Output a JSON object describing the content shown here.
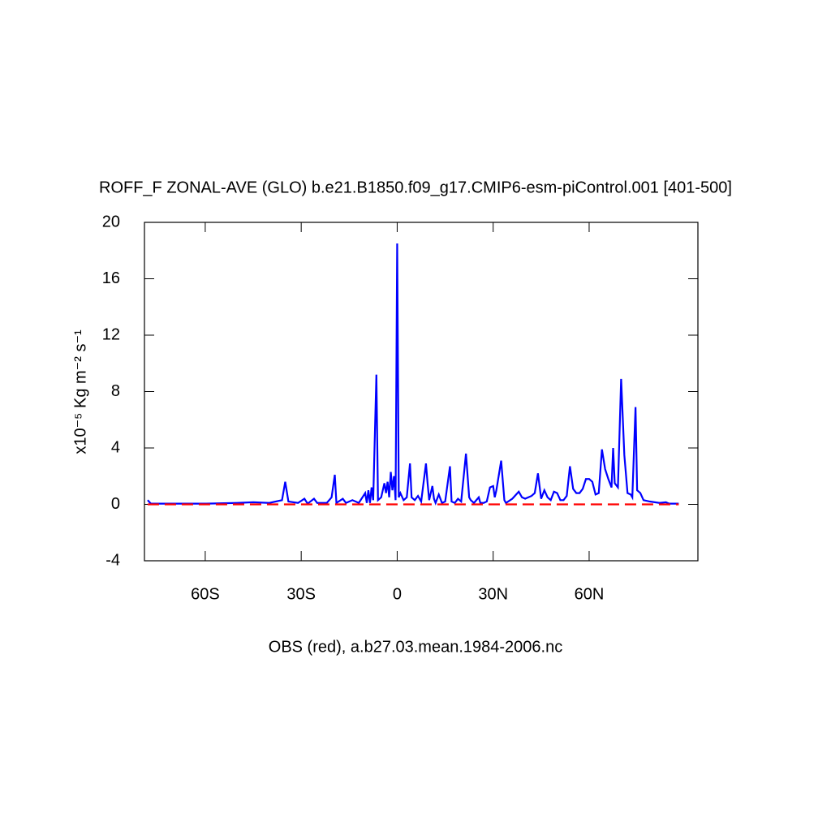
{
  "chart_data": {
    "type": "line",
    "title": "ROFF_F ZONAL-AVE (GLO) b.e21.B1850.f09_g17.CMIP6-esm-piControl.001 [401-500]",
    "y_label": "x10⁻⁵ Kg m⁻² s⁻¹",
    "x_label": "OBS (red), a.b27.03.mean.1984-2006.nc",
    "xlim": [
      -79,
      94
    ],
    "ylim": [
      -4,
      20
    ],
    "xticks": [
      {
        "value": -60,
        "label": "60S"
      },
      {
        "value": -30,
        "label": "30S"
      },
      0,
      {
        "value": 30,
        "label": "30N"
      },
      {
        "value": 60,
        "label": "60N"
      }
    ],
    "yticks": [
      -4,
      0,
      4,
      8,
      12,
      16,
      20
    ],
    "series": [
      {
        "color": "#0000ff",
        "dash": false,
        "x": [
          -78,
          -77,
          -70,
          -60,
          -50,
          -45,
          -40,
          -36,
          -35,
          -34,
          -31,
          -29,
          -28,
          -26,
          -25,
          -22,
          -20.5,
          -19.5,
          -19,
          -17,
          -16,
          -14,
          -12,
          -10,
          -9.5,
          -9,
          -8.5,
          -8,
          -7.5,
          -6.5,
          -6,
          -5,
          -4,
          -3.5,
          -3,
          -2.5,
          -2,
          -1.5,
          -1,
          -0.5,
          0,
          0.5,
          1,
          2,
          3,
          4,
          4.5,
          5.5,
          6.5,
          7.5,
          9,
          9.5,
          10,
          11,
          11.5,
          12,
          13,
          14,
          15,
          16.5,
          17,
          18,
          19,
          20,
          21.5,
          22.5,
          23,
          24,
          25.5,
          26,
          27,
          28,
          29,
          30,
          30.5,
          31,
          32.5,
          33.5,
          34,
          36,
          38,
          39,
          40,
          42,
          43,
          44,
          45,
          46,
          47,
          48,
          49,
          50,
          51,
          52,
          53,
          54,
          55,
          56,
          57,
          58,
          59,
          60,
          61,
          62,
          63,
          64,
          65,
          66,
          67,
          67.5,
          68,
          69,
          70,
          71,
          72,
          73,
          73.5,
          74.5,
          75,
          76,
          77,
          79,
          82,
          84,
          85,
          88
        ],
        "values": [
          0.3,
          0.05,
          0.05,
          0.05,
          0.1,
          0.15,
          0.1,
          0.3,
          1.6,
          0.2,
          0.1,
          0.4,
          0.05,
          0.4,
          0.1,
          0.1,
          0.5,
          2.1,
          0.1,
          0.4,
          0.1,
          0.3,
          0.1,
          0.8,
          0.1,
          1.0,
          0.1,
          1.2,
          0.3,
          9.2,
          0.3,
          0.5,
          1.5,
          0.8,
          1.6,
          0.5,
          2.3,
          1.0,
          2.0,
          0.3,
          18.5,
          0.5,
          0.8,
          0.3,
          0.5,
          2.9,
          0.5,
          0.3,
          0.6,
          0.2,
          2.9,
          1.5,
          0.3,
          1.3,
          0.4,
          0.1,
          0.7,
          0.1,
          0.2,
          2.7,
          0.2,
          0.1,
          0.4,
          0.2,
          3.6,
          0.5,
          0.3,
          0.1,
          0.5,
          0.1,
          0.1,
          0.2,
          1.2,
          1.3,
          0.5,
          1.0,
          3.1,
          0.3,
          0.1,
          0.4,
          0.9,
          0.5,
          0.4,
          0.6,
          0.8,
          2.2,
          0.4,
          1.0,
          0.5,
          0.3,
          0.9,
          0.8,
          0.3,
          0.3,
          0.6,
          2.7,
          1.1,
          0.8,
          0.8,
          1.1,
          1.8,
          1.8,
          1.6,
          0.7,
          0.8,
          3.9,
          2.5,
          1.8,
          1.2,
          4.0,
          1.5,
          1.2,
          8.9,
          3.5,
          0.8,
          0.7,
          0.5,
          6.9,
          1.0,
          0.8,
          0.3,
          0.2,
          0.1,
          0.15,
          0.05,
          0.05
        ]
      },
      {
        "color": "#ff0000",
        "dash": true,
        "x": [
          -78,
          88
        ],
        "values": [
          0,
          0
        ]
      }
    ]
  }
}
